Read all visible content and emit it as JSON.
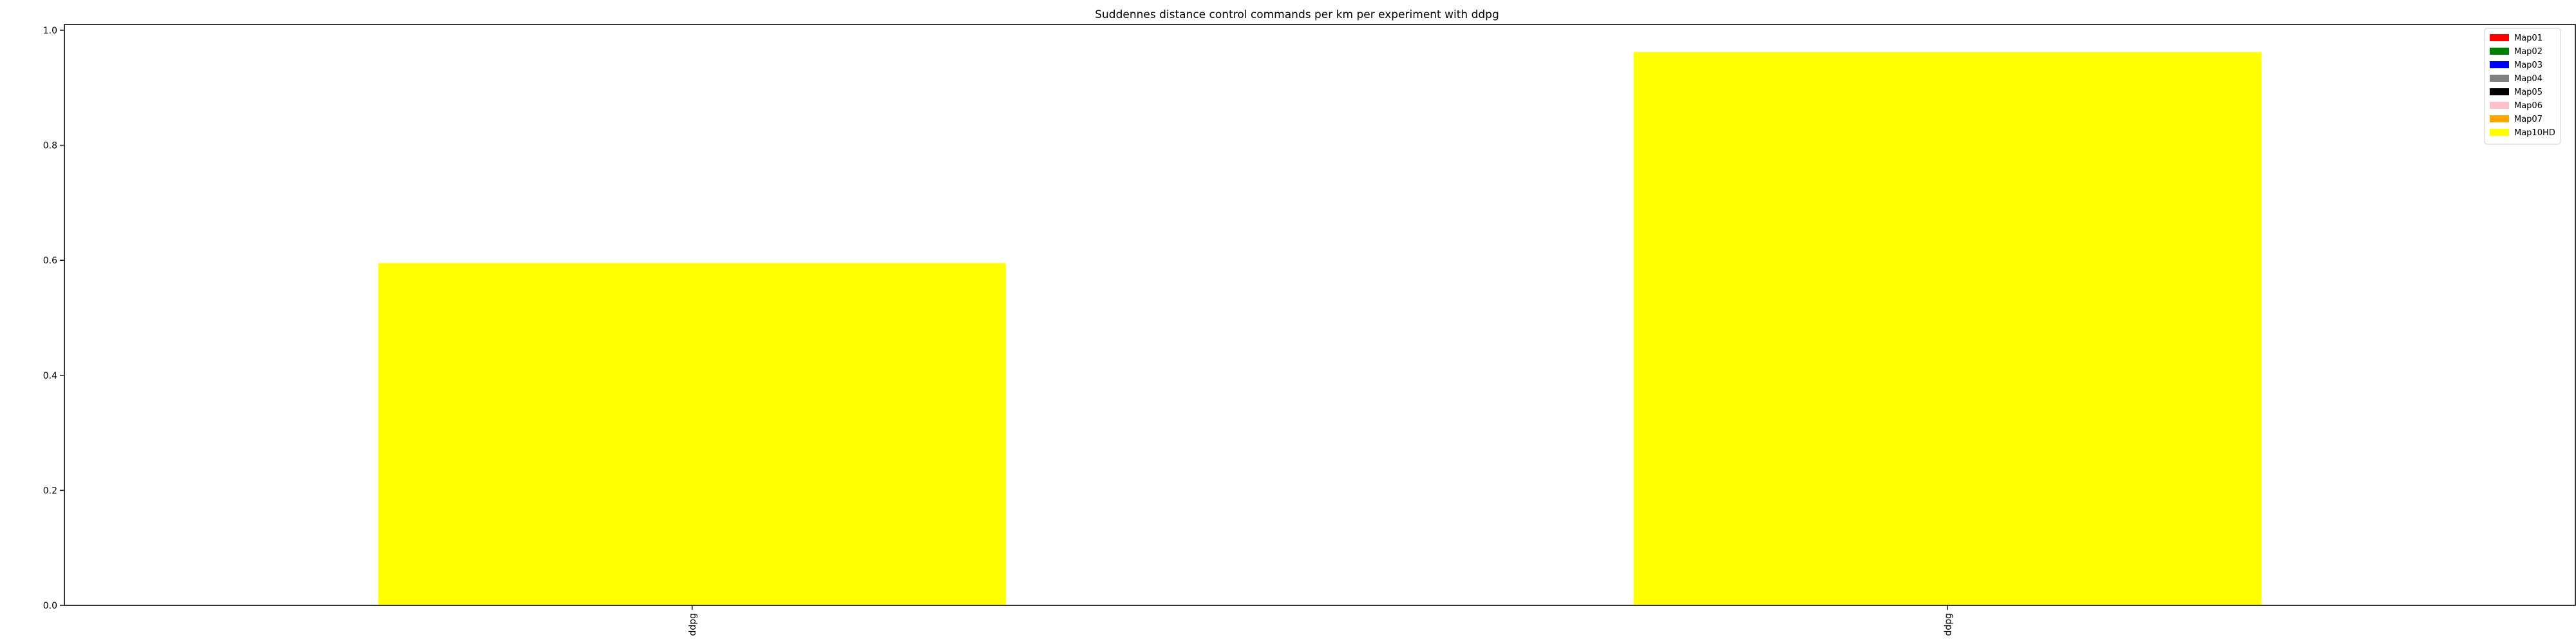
{
  "chart_data": {
    "type": "bar",
    "title": "Suddennes distance control commands per km per experiment with ddpg",
    "xlabel": "",
    "ylabel": "",
    "categories": [
      "ddpg",
      "ddpg"
    ],
    "ylim": [
      0,
      1.01
    ],
    "yticks": [
      "0.0",
      "0.2",
      "0.4",
      "0.6",
      "0.8",
      "1.0"
    ],
    "ytick_values": [
      0,
      0.2,
      0.4,
      0.6,
      0.8,
      1.0
    ],
    "grid": false,
    "legend_position": "top-right",
    "series": [
      {
        "name": "Map01",
        "color": "#ff0000",
        "values": [
          0,
          0
        ]
      },
      {
        "name": "Map02",
        "color": "#008000",
        "values": [
          0,
          0
        ]
      },
      {
        "name": "Map03",
        "color": "#0000ff",
        "values": [
          0,
          0
        ]
      },
      {
        "name": "Map04",
        "color": "#808080",
        "values": [
          0,
          0
        ]
      },
      {
        "name": "Map05",
        "color": "#000000",
        "values": [
          0,
          0
        ]
      },
      {
        "name": "Map06",
        "color": "#ffc0cb",
        "values": [
          0,
          0
        ]
      },
      {
        "name": "Map07",
        "color": "#ffa500",
        "values": [
          0,
          0
        ]
      },
      {
        "name": "Map10HD",
        "color": "#ffff00",
        "values": [
          0.595,
          0.962
        ]
      }
    ]
  }
}
